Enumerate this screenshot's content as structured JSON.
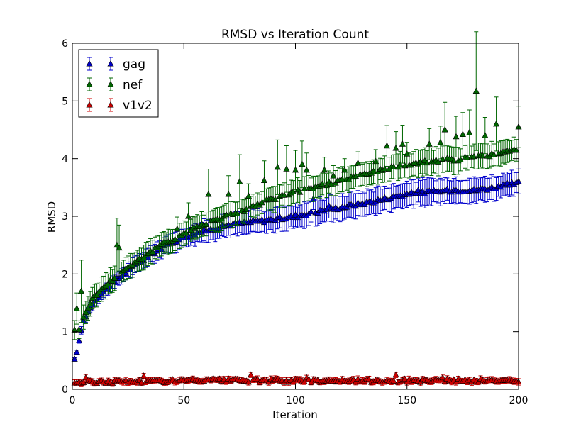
{
  "chart_data": {
    "type": "scatter",
    "title": "RMSD vs Iteration Count",
    "xlabel": "Iteration",
    "ylabel": "RMSD",
    "xlim": [
      0,
      200
    ],
    "ylim": [
      0,
      6
    ],
    "xticks": [
      0,
      50,
      100,
      150,
      200
    ],
    "yticks": [
      0,
      1,
      2,
      3,
      4,
      5,
      6
    ],
    "grid": false,
    "legend_position": "top-left",
    "marker": "triangle-up",
    "error_bars": true,
    "series": [
      {
        "name": "gag",
        "color": "#0000cc",
        "anchors": [
          [
            1,
            0.5
          ],
          [
            2,
            0.67
          ],
          [
            3,
            0.82
          ],
          [
            4,
            1.03
          ],
          [
            5,
            1.18
          ],
          [
            6,
            1.28
          ],
          [
            8,
            1.42
          ],
          [
            10,
            1.55
          ],
          [
            15,
            1.72
          ],
          [
            20,
            1.9
          ],
          [
            25,
            2.06
          ],
          [
            30,
            2.2
          ],
          [
            35,
            2.33
          ],
          [
            40,
            2.45
          ],
          [
            45,
            2.55
          ],
          [
            50,
            2.63
          ],
          [
            55,
            2.7
          ],
          [
            60,
            2.75
          ],
          [
            65,
            2.8
          ],
          [
            70,
            2.85
          ],
          [
            75,
            2.88
          ],
          [
            80,
            2.9
          ],
          [
            90,
            2.94
          ],
          [
            100,
            3.0
          ],
          [
            110,
            3.08
          ],
          [
            120,
            3.15
          ],
          [
            130,
            3.22
          ],
          [
            140,
            3.3
          ],
          [
            150,
            3.38
          ],
          [
            160,
            3.42
          ],
          [
            170,
            3.45
          ],
          [
            180,
            3.45
          ],
          [
            190,
            3.5
          ],
          [
            200,
            3.58
          ]
        ],
        "spikes": [
          [
            108,
            3.3
          ],
          [
            115,
            3.18
          ],
          [
            125,
            3.2
          ],
          [
            155,
            3.45
          ]
        ],
        "err_anchors": [
          [
            1,
            0.02
          ],
          [
            5,
            0.08
          ],
          [
            20,
            0.12
          ],
          [
            60,
            0.18
          ],
          [
            100,
            0.2
          ],
          [
            150,
            0.22
          ],
          [
            200,
            0.2
          ]
        ]
      },
      {
        "name": "nef",
        "color": "#006600",
        "anchors": [
          [
            1,
            1.05
          ],
          [
            2,
            1.1
          ],
          [
            3,
            1.05
          ],
          [
            4,
            1.1
          ],
          [
            5,
            1.25
          ],
          [
            6,
            1.35
          ],
          [
            8,
            1.5
          ],
          [
            10,
            1.62
          ],
          [
            15,
            1.8
          ],
          [
            20,
            1.98
          ],
          [
            25,
            2.12
          ],
          [
            30,
            2.25
          ],
          [
            35,
            2.38
          ],
          [
            40,
            2.5
          ],
          [
            45,
            2.6
          ],
          [
            50,
            2.7
          ],
          [
            55,
            2.8
          ],
          [
            60,
            2.88
          ],
          [
            65,
            2.95
          ],
          [
            70,
            3.02
          ],
          [
            75,
            3.08
          ],
          [
            80,
            3.15
          ],
          [
            90,
            3.3
          ],
          [
            100,
            3.42
          ],
          [
            110,
            3.52
          ],
          [
            120,
            3.62
          ],
          [
            130,
            3.72
          ],
          [
            140,
            3.82
          ],
          [
            150,
            3.9
          ],
          [
            160,
            3.95
          ],
          [
            170,
            3.98
          ],
          [
            180,
            4.02
          ],
          [
            190,
            4.08
          ],
          [
            200,
            4.15
          ]
        ],
        "spikes": [
          [
            2,
            1.4
          ],
          [
            4,
            1.7
          ],
          [
            20,
            2.5
          ],
          [
            21,
            2.45
          ],
          [
            47,
            2.78
          ],
          [
            52,
            3.0
          ],
          [
            61,
            3.38
          ],
          [
            70,
            3.38
          ],
          [
            75,
            3.6
          ],
          [
            79,
            3.35
          ],
          [
            86,
            3.62
          ],
          [
            92,
            3.85
          ],
          [
            96,
            3.82
          ],
          [
            100,
            3.8
          ],
          [
            103,
            3.9
          ],
          [
            105,
            3.8
          ],
          [
            113,
            3.8
          ],
          [
            117,
            3.7
          ],
          [
            122,
            3.8
          ],
          [
            128,
            3.92
          ],
          [
            136,
            3.95
          ],
          [
            141,
            4.22
          ],
          [
            145,
            4.18
          ],
          [
            148,
            4.25
          ],
          [
            150,
            4.08
          ],
          [
            160,
            4.25
          ],
          [
            165,
            4.28
          ],
          [
            167,
            4.5
          ],
          [
            172,
            4.38
          ],
          [
            175,
            4.42
          ],
          [
            178,
            4.45
          ],
          [
            181,
            5.17
          ],
          [
            185,
            4.4
          ],
          [
            190,
            4.6
          ],
          [
            200,
            4.55
          ]
        ],
        "err_anchors": [
          [
            1,
            0.15
          ],
          [
            5,
            0.2
          ],
          [
            20,
            0.2
          ],
          [
            60,
            0.2
          ],
          [
            100,
            0.2
          ],
          [
            150,
            0.22
          ],
          [
            200,
            0.2
          ]
        ]
      },
      {
        "name": "v1v2",
        "color": "#cc0000",
        "anchors": [
          [
            1,
            0.12
          ],
          [
            50,
            0.15
          ],
          [
            100,
            0.15
          ],
          [
            150,
            0.15
          ],
          [
            200,
            0.15
          ]
        ],
        "spikes": [
          [
            6,
            0.2
          ],
          [
            32,
            0.23
          ],
          [
            80,
            0.25
          ],
          [
            105,
            0.2
          ],
          [
            145,
            0.25
          ],
          [
            166,
            0.2
          ]
        ],
        "err_anchors": [
          [
            1,
            0.05
          ],
          [
            200,
            0.05
          ]
        ]
      }
    ]
  }
}
